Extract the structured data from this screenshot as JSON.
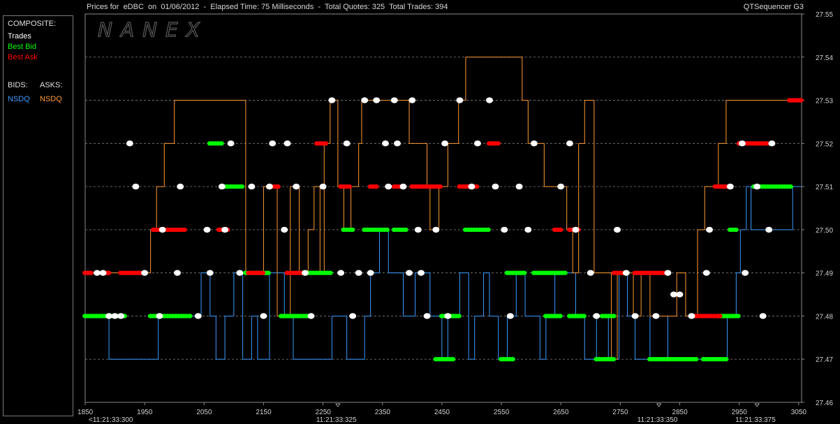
{
  "header": {
    "title": "Prices for  eDBC  on  01/06/2012  -  Elapsed Time: 75 Milliseconds  -  Total Quotes: 325  Total Trades: 394",
    "app_name": "QTSequencer G3"
  },
  "watermark": "NANEX",
  "legend": {
    "composite_label": "COMPOSITE:",
    "trades_label": "Trades",
    "best_bid_label": "Best Bid",
    "best_ask_label": "Best Ask",
    "bids_label": "BIDS:",
    "asks_label": "ASKS:",
    "bid_exchange": "NSDQ",
    "ask_exchange": "NSDQ",
    "colors": {
      "trades": "#ffffff",
      "best_bid": "#00ff00",
      "best_ask": "#ff0000",
      "nsdq_bid": "#3a9bff",
      "nsdq_ask": "#ff9933"
    }
  },
  "chart_data": {
    "type": "scatter",
    "title": "Prices for  eDBC  on  01/06/2012  -  Elapsed Time: 75 Milliseconds  -  Total Quotes: 325  Total Trades: 394",
    "xlim": [
      1850,
      3055
    ],
    "ylim": [
      27.46,
      27.55
    ],
    "grid": true,
    "x_ticks": [
      "1850",
      "1950",
      "2050",
      "2150",
      "2250",
      "2350",
      "2450",
      "2550",
      "2650",
      "2750",
      "2850",
      "2950",
      "3050"
    ],
    "y_ticks": [
      "27.55",
      "27.54",
      "27.53",
      "27.52",
      "27.51",
      "27.50",
      "27.49",
      "27.48",
      "27.47",
      "27.46"
    ],
    "time_labels": [
      {
        "x": 1850,
        "label": "<11:21:33:300"
      },
      {
        "x": 2275,
        "label": "11:21:33:325"
      },
      {
        "x": 2815,
        "label": "11:21:33:350"
      },
      {
        "x": 2980,
        "label": "11:21:33:375"
      }
    ],
    "nsdq_ask_steps": [
      [
        1850,
        27.49
      ],
      [
        1960,
        27.5
      ],
      [
        1970,
        27.51
      ],
      [
        1983,
        27.52
      ],
      [
        2000,
        27.53
      ],
      [
        2120,
        27.49
      ],
      [
        2150,
        27.51
      ],
      [
        2173,
        27.48
      ],
      [
        2195,
        27.51
      ],
      [
        2210,
        27.49
      ],
      [
        2225,
        27.5
      ],
      [
        2235,
        27.51
      ],
      [
        2245,
        27.49
      ],
      [
        2252,
        27.52
      ],
      [
        2262,
        27.53
      ],
      [
        2275,
        27.51
      ],
      [
        2285,
        27.5
      ],
      [
        2297,
        27.51
      ],
      [
        2310,
        27.52
      ],
      [
        2315,
        27.53
      ],
      [
        2395,
        27.52
      ],
      [
        2425,
        27.51
      ],
      [
        2430,
        27.5
      ],
      [
        2445,
        27.51
      ],
      [
        2460,
        27.52
      ],
      [
        2478,
        27.53
      ],
      [
        2490,
        27.54
      ],
      [
        2585,
        27.53
      ],
      [
        2595,
        27.52
      ],
      [
        2622,
        27.51
      ],
      [
        2660,
        27.5
      ],
      [
        2670,
        27.49
      ],
      [
        2680,
        27.52
      ],
      [
        2690,
        27.53
      ],
      [
        2706,
        27.49
      ],
      [
        2735,
        27.47
      ],
      [
        2745,
        27.49
      ],
      [
        2772,
        27.48
      ],
      [
        2785,
        27.49
      ],
      [
        2800,
        27.48
      ],
      [
        2845,
        27.49
      ],
      [
        2860,
        27.48
      ],
      [
        2880,
        27.5
      ],
      [
        2892,
        27.51
      ],
      [
        2915,
        27.52
      ],
      [
        2928,
        27.53
      ],
      [
        3055,
        27.53
      ]
    ],
    "nsdq_bid_steps": [
      [
        1850,
        27.48
      ],
      [
        1890,
        27.47
      ],
      [
        1973,
        27.48
      ],
      [
        2040,
        27.48
      ],
      [
        2045,
        27.49
      ],
      [
        2060,
        27.48
      ],
      [
        2070,
        27.47
      ],
      [
        2085,
        27.48
      ],
      [
        2100,
        27.49
      ],
      [
        2115,
        27.47
      ],
      [
        2130,
        27.48
      ],
      [
        2140,
        27.47
      ],
      [
        2160,
        27.49
      ],
      [
        2185,
        27.48
      ],
      [
        2200,
        27.47
      ],
      [
        2265,
        27.48
      ],
      [
        2290,
        27.47
      ],
      [
        2320,
        27.48
      ],
      [
        2330,
        27.49
      ],
      [
        2345,
        27.5
      ],
      [
        2360,
        27.49
      ],
      [
        2385,
        27.48
      ],
      [
        2405,
        27.49
      ],
      [
        2430,
        27.48
      ],
      [
        2450,
        27.47
      ],
      [
        2460,
        27.48
      ],
      [
        2480,
        27.49
      ],
      [
        2495,
        27.47
      ],
      [
        2505,
        27.48
      ],
      [
        2520,
        27.49
      ],
      [
        2530,
        27.48
      ],
      [
        2545,
        27.47
      ],
      [
        2560,
        27.48
      ],
      [
        2575,
        27.49
      ],
      [
        2590,
        27.48
      ],
      [
        2615,
        27.47
      ],
      [
        2625,
        27.48
      ],
      [
        2640,
        27.49
      ],
      [
        2675,
        27.48
      ],
      [
        2690,
        27.47
      ],
      [
        2710,
        27.48
      ],
      [
        2730,
        27.47
      ],
      [
        2748,
        27.49
      ],
      [
        2762,
        27.48
      ],
      [
        2775,
        27.47
      ],
      [
        2800,
        27.48
      ],
      [
        2830,
        27.47
      ],
      [
        2930,
        27.48
      ],
      [
        2945,
        27.49
      ],
      [
        2952,
        27.5
      ],
      [
        2962,
        27.51
      ],
      [
        2970,
        27.5
      ],
      [
        3040,
        27.51
      ],
      [
        3055,
        27.51
      ]
    ],
    "best_bid_segments": [
      [
        1850,
        1920,
        27.48
      ],
      [
        1960,
        2030,
        27.48
      ],
      [
        2085,
        2115,
        27.51
      ],
      [
        2060,
        2080,
        27.52
      ],
      [
        2120,
        2160,
        27.49
      ],
      [
        2180,
        2230,
        27.48
      ],
      [
        2215,
        2265,
        27.49
      ],
      [
        2285,
        2300,
        27.5
      ],
      [
        2320,
        2360,
        27.5
      ],
      [
        2370,
        2390,
        27.5
      ],
      [
        2440,
        2470,
        27.47
      ],
      [
        2450,
        2480,
        27.48
      ],
      [
        2490,
        2530,
        27.5
      ],
      [
        2550,
        2570,
        27.47
      ],
      [
        2560,
        2590,
        27.49
      ],
      [
        2605,
        2660,
        27.49
      ],
      [
        2625,
        2650,
        27.48
      ],
      [
        2665,
        2690,
        27.48
      ],
      [
        2710,
        2740,
        27.47
      ],
      [
        2720,
        2740,
        27.48
      ],
      [
        2800,
        2830,
        27.47
      ],
      [
        2830,
        2880,
        27.47
      ],
      [
        2890,
        2930,
        27.47
      ],
      [
        2915,
        2950,
        27.48
      ],
      [
        2975,
        3040,
        27.51
      ],
      [
        2935,
        2945,
        27.5
      ]
    ],
    "best_ask_segments": [
      [
        1850,
        1860,
        27.49
      ],
      [
        1880,
        1890,
        27.49
      ],
      [
        1910,
        1945,
        27.49
      ],
      [
        1965,
        2020,
        27.5
      ],
      [
        2075,
        2090,
        27.5
      ],
      [
        2125,
        2150,
        27.49
      ],
      [
        2160,
        2175,
        27.51
      ],
      [
        2190,
        2215,
        27.49
      ],
      [
        2240,
        2255,
        27.52
      ],
      [
        2280,
        2295,
        27.51
      ],
      [
        2330,
        2340,
        27.51
      ],
      [
        2370,
        2385,
        27.51
      ],
      [
        2400,
        2450,
        27.51
      ],
      [
        2480,
        2510,
        27.51
      ],
      [
        2530,
        2545,
        27.52
      ],
      [
        2640,
        2650,
        27.5
      ],
      [
        2665,
        2680,
        27.5
      ],
      [
        2740,
        2760,
        27.49
      ],
      [
        2775,
        2830,
        27.49
      ],
      [
        2870,
        2920,
        27.48
      ],
      [
        2910,
        2930,
        27.51
      ],
      [
        2950,
        3000,
        27.52
      ],
      [
        3035,
        3055,
        27.53
      ]
    ],
    "trades": [
      [
        1870,
        27.49
      ],
      [
        1880,
        27.49
      ],
      [
        1890,
        27.48
      ],
      [
        1900,
        27.48
      ],
      [
        1910,
        27.48
      ],
      [
        1925,
        27.52
      ],
      [
        1935,
        27.51
      ],
      [
        1950,
        27.49
      ],
      [
        1975,
        27.48
      ],
      [
        1980,
        27.5
      ],
      [
        2005,
        27.49
      ],
      [
        2010,
        27.51
      ],
      [
        2040,
        27.48
      ],
      [
        2055,
        27.5
      ],
      [
        2060,
        27.49
      ],
      [
        2080,
        27.51
      ],
      [
        2085,
        27.5
      ],
      [
        2095,
        27.52
      ],
      [
        2110,
        27.49
      ],
      [
        2130,
        27.51
      ],
      [
        2150,
        27.48
      ],
      [
        2160,
        27.51
      ],
      [
        2165,
        27.52
      ],
      [
        2185,
        27.5
      ],
      [
        2190,
        27.52
      ],
      [
        2205,
        27.51
      ],
      [
        2220,
        27.49
      ],
      [
        2230,
        27.48
      ],
      [
        2250,
        27.51
      ],
      [
        2265,
        27.53
      ],
      [
        2280,
        27.49
      ],
      [
        2290,
        27.52
      ],
      [
        2300,
        27.48
      ],
      [
        2310,
        27.49
      ],
      [
        2320,
        27.53
      ],
      [
        2330,
        27.49
      ],
      [
        2340,
        27.53
      ],
      [
        2355,
        27.52
      ],
      [
        2360,
        27.51
      ],
      [
        2370,
        27.53
      ],
      [
        2375,
        27.52
      ],
      [
        2385,
        27.51
      ],
      [
        2395,
        27.49
      ],
      [
        2400,
        27.53
      ],
      [
        2410,
        27.5
      ],
      [
        2415,
        27.49
      ],
      [
        2425,
        27.48
      ],
      [
        2440,
        27.5
      ],
      [
        2455,
        27.52
      ],
      [
        2460,
        27.48
      ],
      [
        2480,
        27.53
      ],
      [
        2500,
        27.51
      ],
      [
        2510,
        27.52
      ],
      [
        2530,
        27.53
      ],
      [
        2540,
        27.51
      ],
      [
        2555,
        27.5
      ],
      [
        2565,
        27.48
      ],
      [
        2580,
        27.51
      ],
      [
        2595,
        27.5
      ],
      [
        2605,
        27.52
      ],
      [
        2650,
        27.51
      ],
      [
        2665,
        27.52
      ],
      [
        2675,
        27.5
      ],
      [
        2700,
        27.49
      ],
      [
        2710,
        27.48
      ],
      [
        2745,
        27.5
      ],
      [
        2760,
        27.49
      ],
      [
        2775,
        27.48
      ],
      [
        2810,
        27.48
      ],
      [
        2830,
        27.49
      ],
      [
        2840,
        27.485
      ],
      [
        2850,
        27.485
      ],
      [
        2870,
        27.48
      ],
      [
        2895,
        27.49
      ],
      [
        2900,
        27.5
      ],
      [
        2935,
        27.51
      ],
      [
        2955,
        27.52
      ],
      [
        2960,
        27.49
      ],
      [
        2980,
        27.51
      ],
      [
        2990,
        27.48
      ],
      [
        3000,
        27.5
      ],
      [
        3005,
        27.52
      ]
    ]
  }
}
